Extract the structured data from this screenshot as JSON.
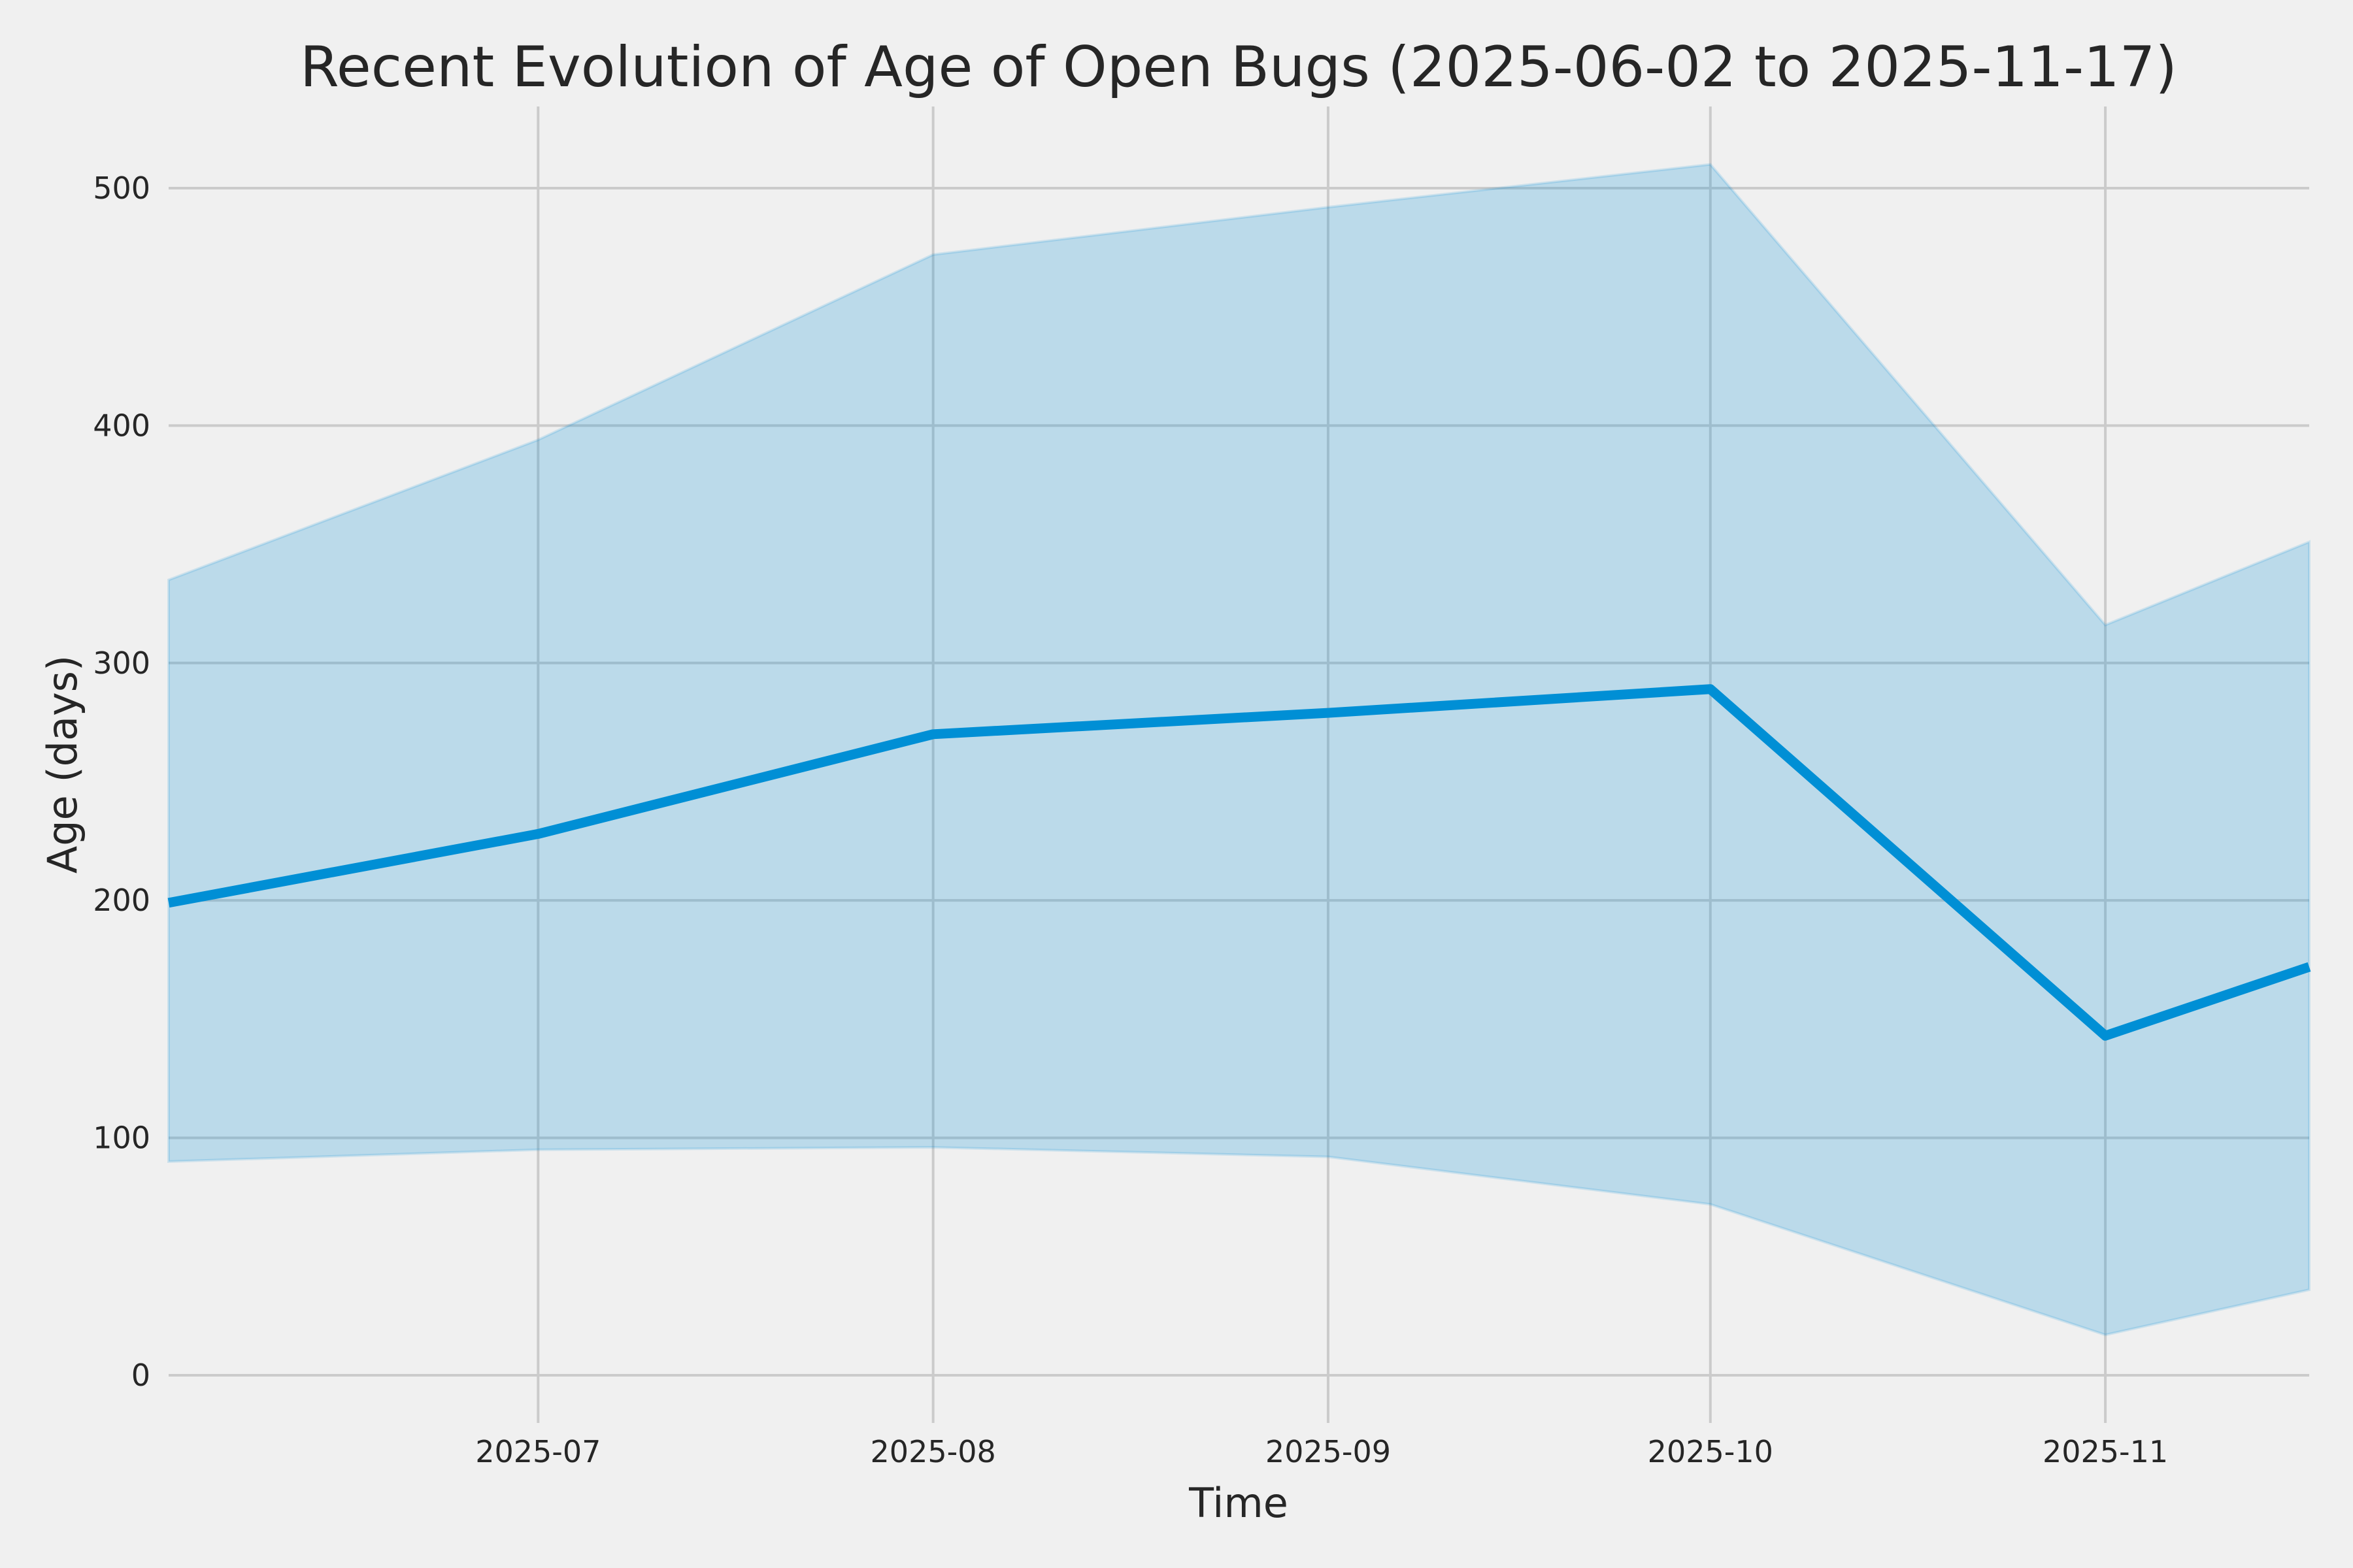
{
  "figure": {
    "background": "#F0F0F0"
  },
  "chart_data": {
    "type": "line",
    "title": "Recent Evolution of Age of Open Bugs (2025-06-02 to 2025-11-17)",
    "xlabel": "Time",
    "ylabel": "Age (days)",
    "date_range_start": "2025-06-02",
    "date_range_end": "2025-11-17",
    "x_dates": [
      "2025-06-02",
      "2025-07-01",
      "2025-08-01",
      "2025-09-01",
      "2025-10-01",
      "2025-11-01",
      "2025-11-17"
    ],
    "x_days": [
      0,
      29,
      60,
      91,
      121,
      152,
      168
    ],
    "series": [
      {
        "name": "mean_age_days",
        "role": "line",
        "values": [
          199,
          228,
          270,
          279,
          289,
          143,
          172
        ]
      },
      {
        "name": "upper_band_days",
        "role": "band_upper",
        "values": [
          335,
          394,
          472,
          492,
          510,
          316,
          351
        ]
      },
      {
        "name": "lower_band_days",
        "role": "band_lower",
        "values": [
          90,
          95,
          96,
          92,
          72,
          17,
          36
        ]
      }
    ],
    "x_ticks": [
      {
        "day": 29,
        "label": "2025-07"
      },
      {
        "day": 60,
        "label": "2025-08"
      },
      {
        "day": 91,
        "label": "2025-09"
      },
      {
        "day": 121,
        "label": "2025-10"
      },
      {
        "day": 152,
        "label": "2025-11"
      }
    ],
    "y_ticks": [
      {
        "value": 0,
        "label": "0"
      },
      {
        "value": 100,
        "label": "100"
      },
      {
        "value": 200,
        "label": "200"
      },
      {
        "value": 300,
        "label": "300"
      },
      {
        "value": 400,
        "label": "400"
      },
      {
        "value": 500,
        "label": "500"
      }
    ],
    "xlim": [
      0,
      168
    ],
    "ylim": [
      -20.1,
      534.4
    ],
    "grid": true,
    "legend": false,
    "colors": {
      "line": "#008FD5",
      "band_fill": "#008FD5",
      "band_opacity": 0.22,
      "background": "#F0F0F0",
      "grid": "#CBCBCB",
      "text": "#262626"
    }
  }
}
